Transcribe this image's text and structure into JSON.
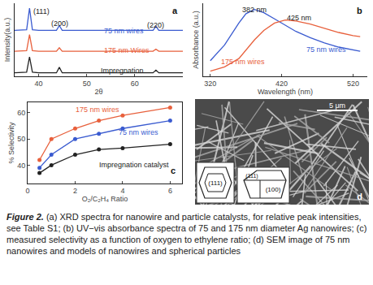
{
  "chart_data": [
    {
      "type": "line",
      "label": "a",
      "x_label": "2θ",
      "y_label": "Intensity(a.u.)",
      "x": [
        35,
        37.5,
        38.1,
        38.7,
        40,
        43.7,
        44.3,
        44.9,
        50,
        55,
        60,
        63.8,
        64.4,
        65,
        70
      ],
      "series": [
        {
          "name": "75 nm wires",
          "color": "#3a5bd0",
          "values": [
            6.6,
            6.7,
            9.8,
            6.7,
            6.6,
            6.6,
            7.3,
            6.6,
            6.6,
            6.6,
            6.6,
            6.6,
            7.2,
            6.6,
            6.6
          ]
        },
        {
          "name": "175 nm Wires",
          "color": "#e8603c",
          "values": [
            3.6,
            3.7,
            6.0,
            3.7,
            3.6,
            3.6,
            4.1,
            3.6,
            3.6,
            3.6,
            3.6,
            3.6,
            3.9,
            3.6,
            3.6
          ]
        },
        {
          "name": "Impregnation",
          "color": "#222222",
          "values": [
            0.5,
            0.6,
            2.8,
            0.6,
            0.5,
            0.5,
            1.3,
            0.5,
            0.5,
            0.5,
            0.5,
            0.5,
            0.9,
            0.5,
            0.5
          ]
        }
      ],
      "annotations": [
        {
          "text": "(111)",
          "x": 38.1
        },
        {
          "text": "(200)",
          "x": 44.3
        },
        {
          "text": "(220)",
          "x": 64.4
        }
      ],
      "xlim": [
        35,
        70
      ],
      "xticks": [
        40,
        50,
        60
      ],
      "ylim": [
        0,
        10.5
      ],
      "tick_labels": "x"
    },
    {
      "type": "line",
      "label": "b",
      "x_label": "Wavelength (nm)",
      "y_label": "Absorbance (a.u.)",
      "x": [
        320,
        340,
        360,
        370,
        382,
        395,
        410,
        425,
        440,
        460,
        480,
        500,
        520,
        530
      ],
      "series": [
        {
          "name": "75 nm wires",
          "color": "#3a5bd0",
          "values": [
            3.0,
            4.5,
            6.6,
            7.5,
            7.9,
            7.6,
            7.0,
            6.4,
            5.8,
            5.2,
            4.7,
            4.3,
            4.0,
            3.9
          ]
        },
        {
          "name": "175 nm wires",
          "color": "#e8603c",
          "values": [
            2.0,
            2.4,
            3.2,
            4.0,
            5.0,
            5.9,
            6.6,
            6.9,
            6.8,
            6.5,
            6.1,
            5.7,
            5.4,
            5.3
          ]
        }
      ],
      "annotations": [
        {
          "text": "382 nm",
          "x": 382
        },
        {
          "text": "425 nm",
          "x": 425
        }
      ],
      "xlim": [
        310,
        540
      ],
      "xticks": [
        320,
        420,
        520
      ],
      "ylim": [
        1.5,
        8.5
      ],
      "tick_labels": "x"
    },
    {
      "type": "line",
      "label": "c",
      "x_label": "O₂/C₂H₄ Ratio",
      "y_label": "% Selectivity",
      "marker": "circle",
      "x": [
        0.5,
        1,
        2,
        3,
        4,
        6
      ],
      "series": [
        {
          "name": "175 nm wires",
          "color": "#e8603c",
          "values": [
            42,
            50,
            54,
            57,
            59,
            62
          ]
        },
        {
          "name": "75 nm wires",
          "color": "#3a5bd0",
          "values": [
            39,
            44,
            50,
            52,
            54,
            57
          ]
        },
        {
          "name": "Impregnation catalyst",
          "color": "#222222",
          "values": [
            37,
            40,
            44,
            46,
            46.5,
            48
          ]
        }
      ],
      "annotations": [],
      "xlim": [
        0,
        6.5
      ],
      "xticks": [
        0,
        2,
        4,
        6
      ],
      "ylim": [
        33,
        64
      ],
      "yticks": [
        40,
        50,
        60
      ]
    }
  ],
  "sem_panel": {
    "label": "d",
    "scale_bar": "5 μm",
    "facets": [
      "(111)",
      "(111)",
      "(100)"
    ]
  },
  "caption": {
    "label": "Figure 2.",
    "text": "(a) XRD spectra for nanowire and particle catalysts, for relative peak intensities, see Table S1; (b) UV−vis absorbance spectra of 75 and 175 nm diameter Ag nanowires; (c) measured selectivity as a function of oxygen to ethylene ratio; (d) SEM image of 75 nm nanowires and models of nanowires and spherical particles"
  }
}
